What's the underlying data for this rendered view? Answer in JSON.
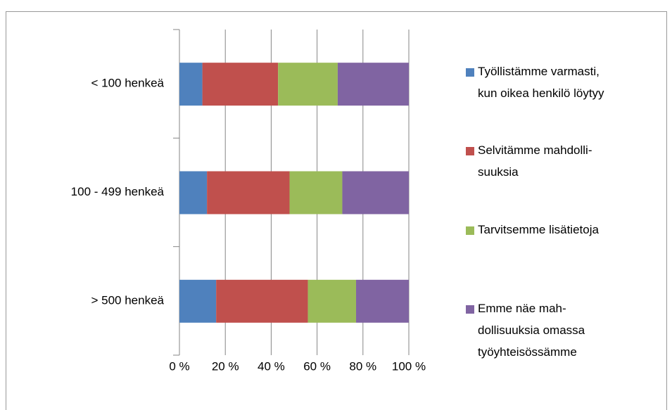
{
  "chart_data": {
    "type": "stacked-bar-horizontal",
    "categories": [
      "< 100 henkeä",
      "100 - 499 henkeä",
      "> 500 henkeä"
    ],
    "series": [
      {
        "name": "Työllistämme  varmasti,\nkun oikea henkilö löytyy",
        "color": "#4f81bd",
        "values": [
          10,
          12,
          16
        ]
      },
      {
        "name": "Selvitämme mahdolli-\nsuuksia",
        "color": "#c0504d",
        "values": [
          33,
          36,
          40
        ]
      },
      {
        "name": "Tarvitsemme lisätietoja",
        "color": "#9bbb59",
        "values": [
          26,
          23,
          21
        ]
      },
      {
        "name": "Emme näe mah-\ndollisuuksia omassa\ntyöyhteisössämme",
        "color": "#8064a2",
        "values": [
          31,
          29,
          23
        ]
      }
    ],
    "xlim": [
      0,
      100
    ],
    "xticks": [
      {
        "value": 0,
        "label": "0 %"
      },
      {
        "value": 20,
        "label": "20 %"
      },
      {
        "value": 40,
        "label": "40 %"
      },
      {
        "value": 60,
        "label": "60 %"
      },
      {
        "value": 80,
        "label": "80 %"
      },
      {
        "value": 100,
        "label": "100 %"
      }
    ],
    "grid": true,
    "legend": "right"
  }
}
